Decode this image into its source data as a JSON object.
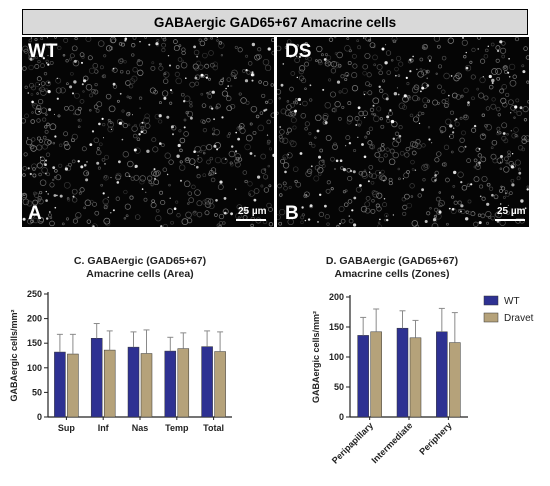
{
  "header": {
    "title": "GABAergic GAD65+67 Amacrine cells"
  },
  "panels": [
    {
      "tag": "WT",
      "letter": "A",
      "scale": "25 µm"
    },
    {
      "tag": "DS",
      "letter": "B",
      "scale": "25 µm"
    }
  ],
  "colors": {
    "wt": "#2e3192",
    "dravet": "#b5a27a",
    "error": "#8a8a8a"
  },
  "chart_data": [
    {
      "type": "bar",
      "title": "C. GABAergic (GAD65+67)",
      "subtitle": "Amacrine cells (Area)",
      "ylabel": "GABAergic cells/mm²",
      "ylim": [
        0,
        250
      ],
      "yticks": [
        0,
        50,
        100,
        150,
        200,
        250
      ],
      "categories": [
        "Sup",
        "Inf",
        "Nas",
        "Temp",
        "Total"
      ],
      "series": [
        {
          "name": "WT",
          "values": [
            132,
            160,
            142,
            134,
            143
          ],
          "errors": [
            36,
            30,
            31,
            28,
            32
          ]
        },
        {
          "name": "Dravet",
          "values": [
            128,
            136,
            129,
            139,
            133
          ],
          "errors": [
            40,
            39,
            48,
            32,
            40
          ]
        }
      ]
    },
    {
      "type": "bar",
      "title": "D. GABAergic (GAD65+67)",
      "subtitle": "Amacrine cells (Zones)",
      "ylabel": "GABAergic cells/mm²",
      "ylim": [
        0,
        200
      ],
      "yticks": [
        0,
        50,
        100,
        150,
        200
      ],
      "categories": [
        "Peripapillary",
        "Intermediate",
        "Periphery"
      ],
      "legend": "right",
      "series": [
        {
          "name": "WT",
          "values": [
            136,
            148,
            142
          ],
          "errors": [
            30,
            29,
            39
          ]
        },
        {
          "name": "Dravet",
          "values": [
            142,
            132,
            124
          ],
          "errors": [
            38,
            29,
            50
          ]
        }
      ]
    }
  ]
}
